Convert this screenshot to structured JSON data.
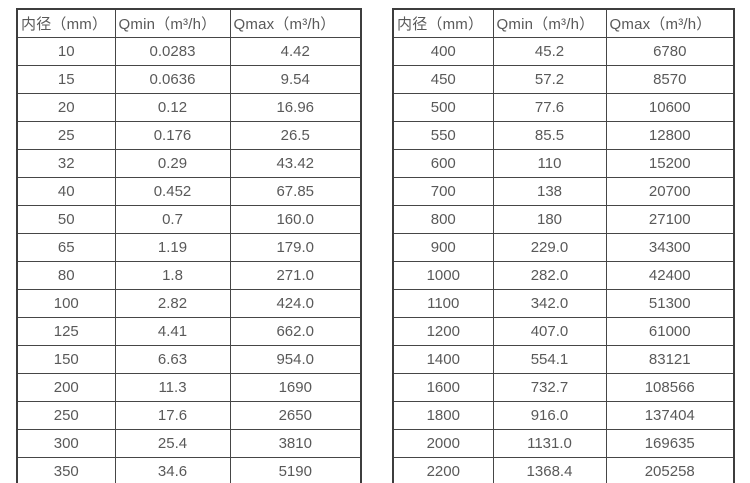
{
  "tables": [
    {
      "name": "small-diameters",
      "headers": [
        "内径（mm）",
        "Qmin（m³/h）",
        "Qmax（m³/h）"
      ],
      "rows": [
        [
          "10",
          "0.0283",
          "4.42"
        ],
        [
          "15",
          "0.0636",
          "9.54"
        ],
        [
          "20",
          "0.12",
          "16.96"
        ],
        [
          "25",
          "0.176",
          "26.5"
        ],
        [
          "32",
          "0.29",
          "43.42"
        ],
        [
          "40",
          "0.452",
          "67.85"
        ],
        [
          "50",
          "0.7",
          "160.0"
        ],
        [
          "65",
          "1.19",
          "179.0"
        ],
        [
          "80",
          "1.8",
          "271.0"
        ],
        [
          "100",
          "2.82",
          "424.0"
        ],
        [
          "125",
          "4.41",
          "662.0"
        ],
        [
          "150",
          "6.63",
          "954.0"
        ],
        [
          "200",
          "11.3",
          "1690"
        ],
        [
          "250",
          "17.6",
          "2650"
        ],
        [
          "300",
          "25.4",
          "3810"
        ],
        [
          "350",
          "34.6",
          "5190"
        ]
      ]
    },
    {
      "name": "large-diameters",
      "headers": [
        "内径（mm）",
        "Qmin（m³/h）",
        "Qmax（m³/h）"
      ],
      "rows": [
        [
          "400",
          "45.2",
          "6780"
        ],
        [
          "450",
          "57.2",
          "8570"
        ],
        [
          "500",
          "77.6",
          "10600"
        ],
        [
          "550",
          "85.5",
          "12800"
        ],
        [
          "600",
          "110",
          "15200"
        ],
        [
          "700",
          "138",
          "20700"
        ],
        [
          "800",
          "180",
          "27100"
        ],
        [
          "900",
          "229.0",
          "34300"
        ],
        [
          "1000",
          "282.0",
          "42400"
        ],
        [
          "1100",
          "342.0",
          "51300"
        ],
        [
          "1200",
          "407.0",
          "61000"
        ],
        [
          "1400",
          "554.1",
          "83121"
        ],
        [
          "1600",
          "732.7",
          "108566"
        ],
        [
          "1800",
          "916.0",
          "137404"
        ],
        [
          "2000",
          "1131.0",
          "169635"
        ],
        [
          "2200",
          "1368.4",
          "205258"
        ]
      ]
    }
  ],
  "colors": {
    "text": "#595959",
    "border": "#3d3d3d",
    "background": "#ffffff"
  }
}
